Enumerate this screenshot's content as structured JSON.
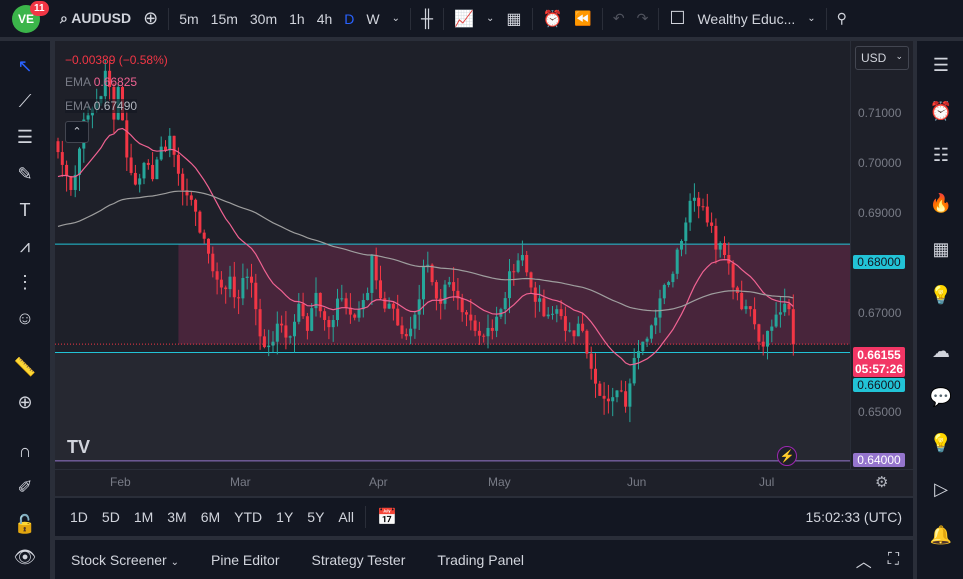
{
  "topbar": {
    "notifications": "11",
    "symbol": "AUDUSD",
    "timeframes": [
      "5m",
      "15m",
      "30m",
      "1h",
      "4h",
      "D",
      "W"
    ],
    "active_timeframe": "D",
    "layout_name": "Wealthy Educ..."
  },
  "legend": {
    "change": "−0.00389 (−0.58%)",
    "ema1_label": "EMA",
    "ema1_value": "0.66825",
    "ema2_label": "EMA",
    "ema2_value": "0.67490"
  },
  "price_axis": {
    "currency": "USD",
    "ticks": [
      "0.71000",
      "0.70000",
      "0.69000",
      "0.67000",
      "0.65000"
    ],
    "last_price": "0.66155",
    "countdown": "05:57:26",
    "level_high": "0.68000",
    "level_low": "0.66000",
    "level_bottom": "0.64000"
  },
  "time_axis": [
    "Feb",
    "Mar",
    "Apr",
    "May",
    "Jun",
    "Jul"
  ],
  "bottom_bar": {
    "ranges": [
      "1D",
      "5D",
      "1M",
      "3M",
      "6M",
      "YTD",
      "1Y",
      "5Y",
      "All"
    ],
    "clock": "15:02:33 (UTC)"
  },
  "bottom_panel": {
    "tabs": [
      "Stock Screener",
      "Pine Editor",
      "Strategy Tester",
      "Trading Panel"
    ]
  },
  "colors": {
    "up": "#26a69a",
    "down": "#f23645",
    "ema_fast": "#f06292",
    "ema_slow": "#9e9e9e",
    "zone": "#6b2a4a",
    "level": "#22c3d6",
    "bottom_level": "#9575cd"
  },
  "chart_data": {
    "type": "candlestick",
    "keypoints": [
      [
        0,
        0.697
      ],
      [
        3,
        0.69
      ],
      [
        6,
        0.703
      ],
      [
        9,
        0.706
      ],
      [
        11,
        0.712
      ],
      [
        13,
        0.703
      ],
      [
        14,
        0.709
      ],
      [
        16,
        0.696
      ],
      [
        18,
        0.691
      ],
      [
        20,
        0.695
      ],
      [
        22,
        0.692
      ],
      [
        24,
        0.698
      ],
      [
        26,
        0.7
      ],
      [
        28,
        0.693
      ],
      [
        30,
        0.689
      ],
      [
        32,
        0.686
      ],
      [
        34,
        0.681
      ],
      [
        36,
        0.675
      ],
      [
        38,
        0.672
      ],
      [
        40,
        0.674
      ],
      [
        42,
        0.67
      ],
      [
        44,
        0.674
      ],
      [
        46,
        0.668
      ],
      [
        48,
        0.661
      ],
      [
        50,
        0.662
      ],
      [
        52,
        0.665
      ],
      [
        54,
        0.663
      ],
      [
        56,
        0.669
      ],
      [
        58,
        0.664
      ],
      [
        60,
        0.671
      ],
      [
        62,
        0.666
      ],
      [
        64,
        0.666
      ],
      [
        66,
        0.67
      ],
      [
        68,
        0.667
      ],
      [
        70,
        0.668
      ],
      [
        72,
        0.671
      ],
      [
        73,
        0.678
      ],
      [
        75,
        0.67
      ],
      [
        77,
        0.669
      ],
      [
        79,
        0.665
      ],
      [
        81,
        0.663
      ],
      [
        83,
        0.667
      ],
      [
        85,
        0.676
      ],
      [
        87,
        0.673
      ],
      [
        89,
        0.669
      ],
      [
        91,
        0.673
      ],
      [
        93,
        0.67
      ],
      [
        95,
        0.667
      ],
      [
        97,
        0.664
      ],
      [
        99,
        0.663
      ],
      [
        101,
        0.664
      ],
      [
        103,
        0.668
      ],
      [
        105,
        0.675
      ],
      [
        107,
        0.677
      ],
      [
        108,
        0.678
      ],
      [
        110,
        0.672
      ],
      [
        112,
        0.67
      ],
      [
        114,
        0.667
      ],
      [
        116,
        0.668
      ],
      [
        118,
        0.664
      ],
      [
        120,
        0.663
      ],
      [
        122,
        0.664
      ],
      [
        124,
        0.657
      ],
      [
        126,
        0.652
      ],
      [
        128,
        0.651
      ],
      [
        130,
        0.653
      ],
      [
        132,
        0.65
      ],
      [
        134,
        0.659
      ],
      [
        136,
        0.662
      ],
      [
        138,
        0.665
      ],
      [
        140,
        0.67
      ],
      [
        142,
        0.673
      ],
      [
        144,
        0.679
      ],
      [
        146,
        0.684
      ],
      [
        147,
        0.688
      ],
      [
        149,
        0.687
      ],
      [
        151,
        0.684
      ],
      [
        153,
        0.679
      ],
      [
        155,
        0.678
      ],
      [
        157,
        0.672
      ],
      [
        159,
        0.668
      ],
      [
        161,
        0.668
      ],
      [
        163,
        0.662
      ],
      [
        165,
        0.664
      ],
      [
        167,
        0.667
      ],
      [
        169,
        0.669
      ],
      [
        170,
        0.668
      ],
      [
        171,
        0.6615
      ]
    ],
    "ylim": [
      0.6385,
      0.7175
    ],
    "ema_periods": [
      20,
      100
    ]
  }
}
